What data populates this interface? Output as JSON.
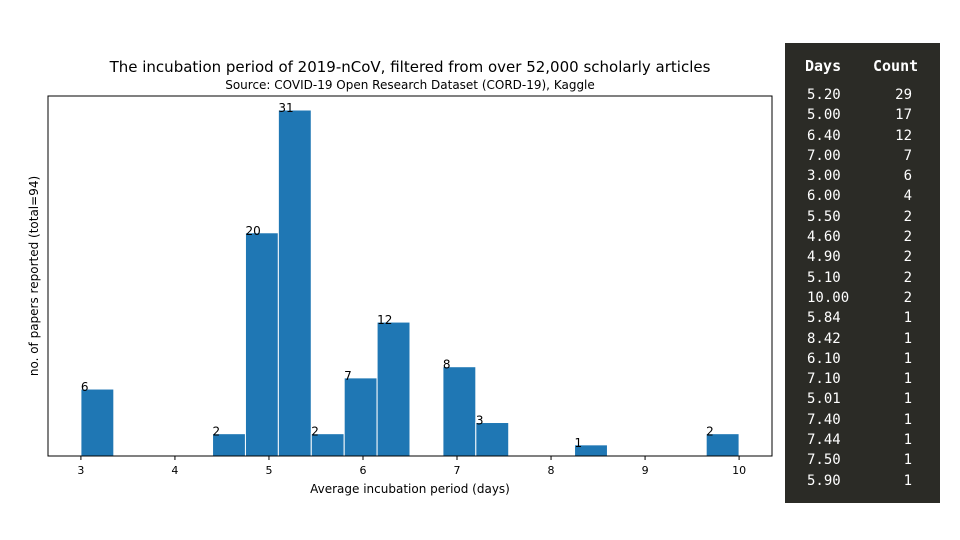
{
  "chart_data": {
    "type": "bar",
    "title": "The incubation period of 2019-nCoV, filtered from over 52,000 scholarly articles",
    "subtitle": "Source: COVID-19 Open Research Dataset (CORD-19), Kaggle",
    "xlabel": "Average incubation period (days)",
    "ylabel": "no. of papers reported (total=94)",
    "xlim": [
      2.65,
      10.35
    ],
    "ylim": [
      0,
      31
    ],
    "xticks": [
      "3",
      "4",
      "5",
      "6",
      "7",
      "8",
      "9",
      "10"
    ],
    "bin_width": 0.35,
    "bars": [
      {
        "x0": 3.0,
        "value": 6
      },
      {
        "x0": 4.4,
        "value": 2
      },
      {
        "x0": 4.75,
        "value": 20
      },
      {
        "x0": 5.1,
        "value": 31
      },
      {
        "x0": 5.45,
        "value": 2
      },
      {
        "x0": 5.8,
        "value": 7
      },
      {
        "x0": 6.15,
        "value": 12
      },
      {
        "x0": 6.85,
        "value": 8
      },
      {
        "x0": 7.2,
        "value": 3
      },
      {
        "x0": 8.25,
        "value": 1
      },
      {
        "x0": 9.65,
        "value": 2
      }
    ],
    "grid": false,
    "legend": "none"
  },
  "table": {
    "headers": {
      "days": "Days",
      "count": "Count"
    },
    "rows": [
      {
        "days": "5.20",
        "count": "29"
      },
      {
        "days": "5.00",
        "count": "17"
      },
      {
        "days": "6.40",
        "count": "12"
      },
      {
        "days": "7.00",
        "count": "7"
      },
      {
        "days": "3.00",
        "count": "6"
      },
      {
        "days": "6.00",
        "count": "4"
      },
      {
        "days": "5.50",
        "count": "2"
      },
      {
        "days": "4.60",
        "count": "2"
      },
      {
        "days": "4.90",
        "count": "2"
      },
      {
        "days": "5.10",
        "count": "2"
      },
      {
        "days": "10.00",
        "count": "2"
      },
      {
        "days": "5.84",
        "count": "1"
      },
      {
        "days": "8.42",
        "count": "1"
      },
      {
        "days": "6.10",
        "count": "1"
      },
      {
        "days": "7.10",
        "count": "1"
      },
      {
        "days": "5.01",
        "count": "1"
      },
      {
        "days": "7.40",
        "count": "1"
      },
      {
        "days": "7.44",
        "count": "1"
      },
      {
        "days": "7.50",
        "count": "1"
      },
      {
        "days": "5.90",
        "count": "1"
      }
    ]
  },
  "colors": {
    "bar": "#1f77b4",
    "panel_bg": "#2b2b26"
  }
}
